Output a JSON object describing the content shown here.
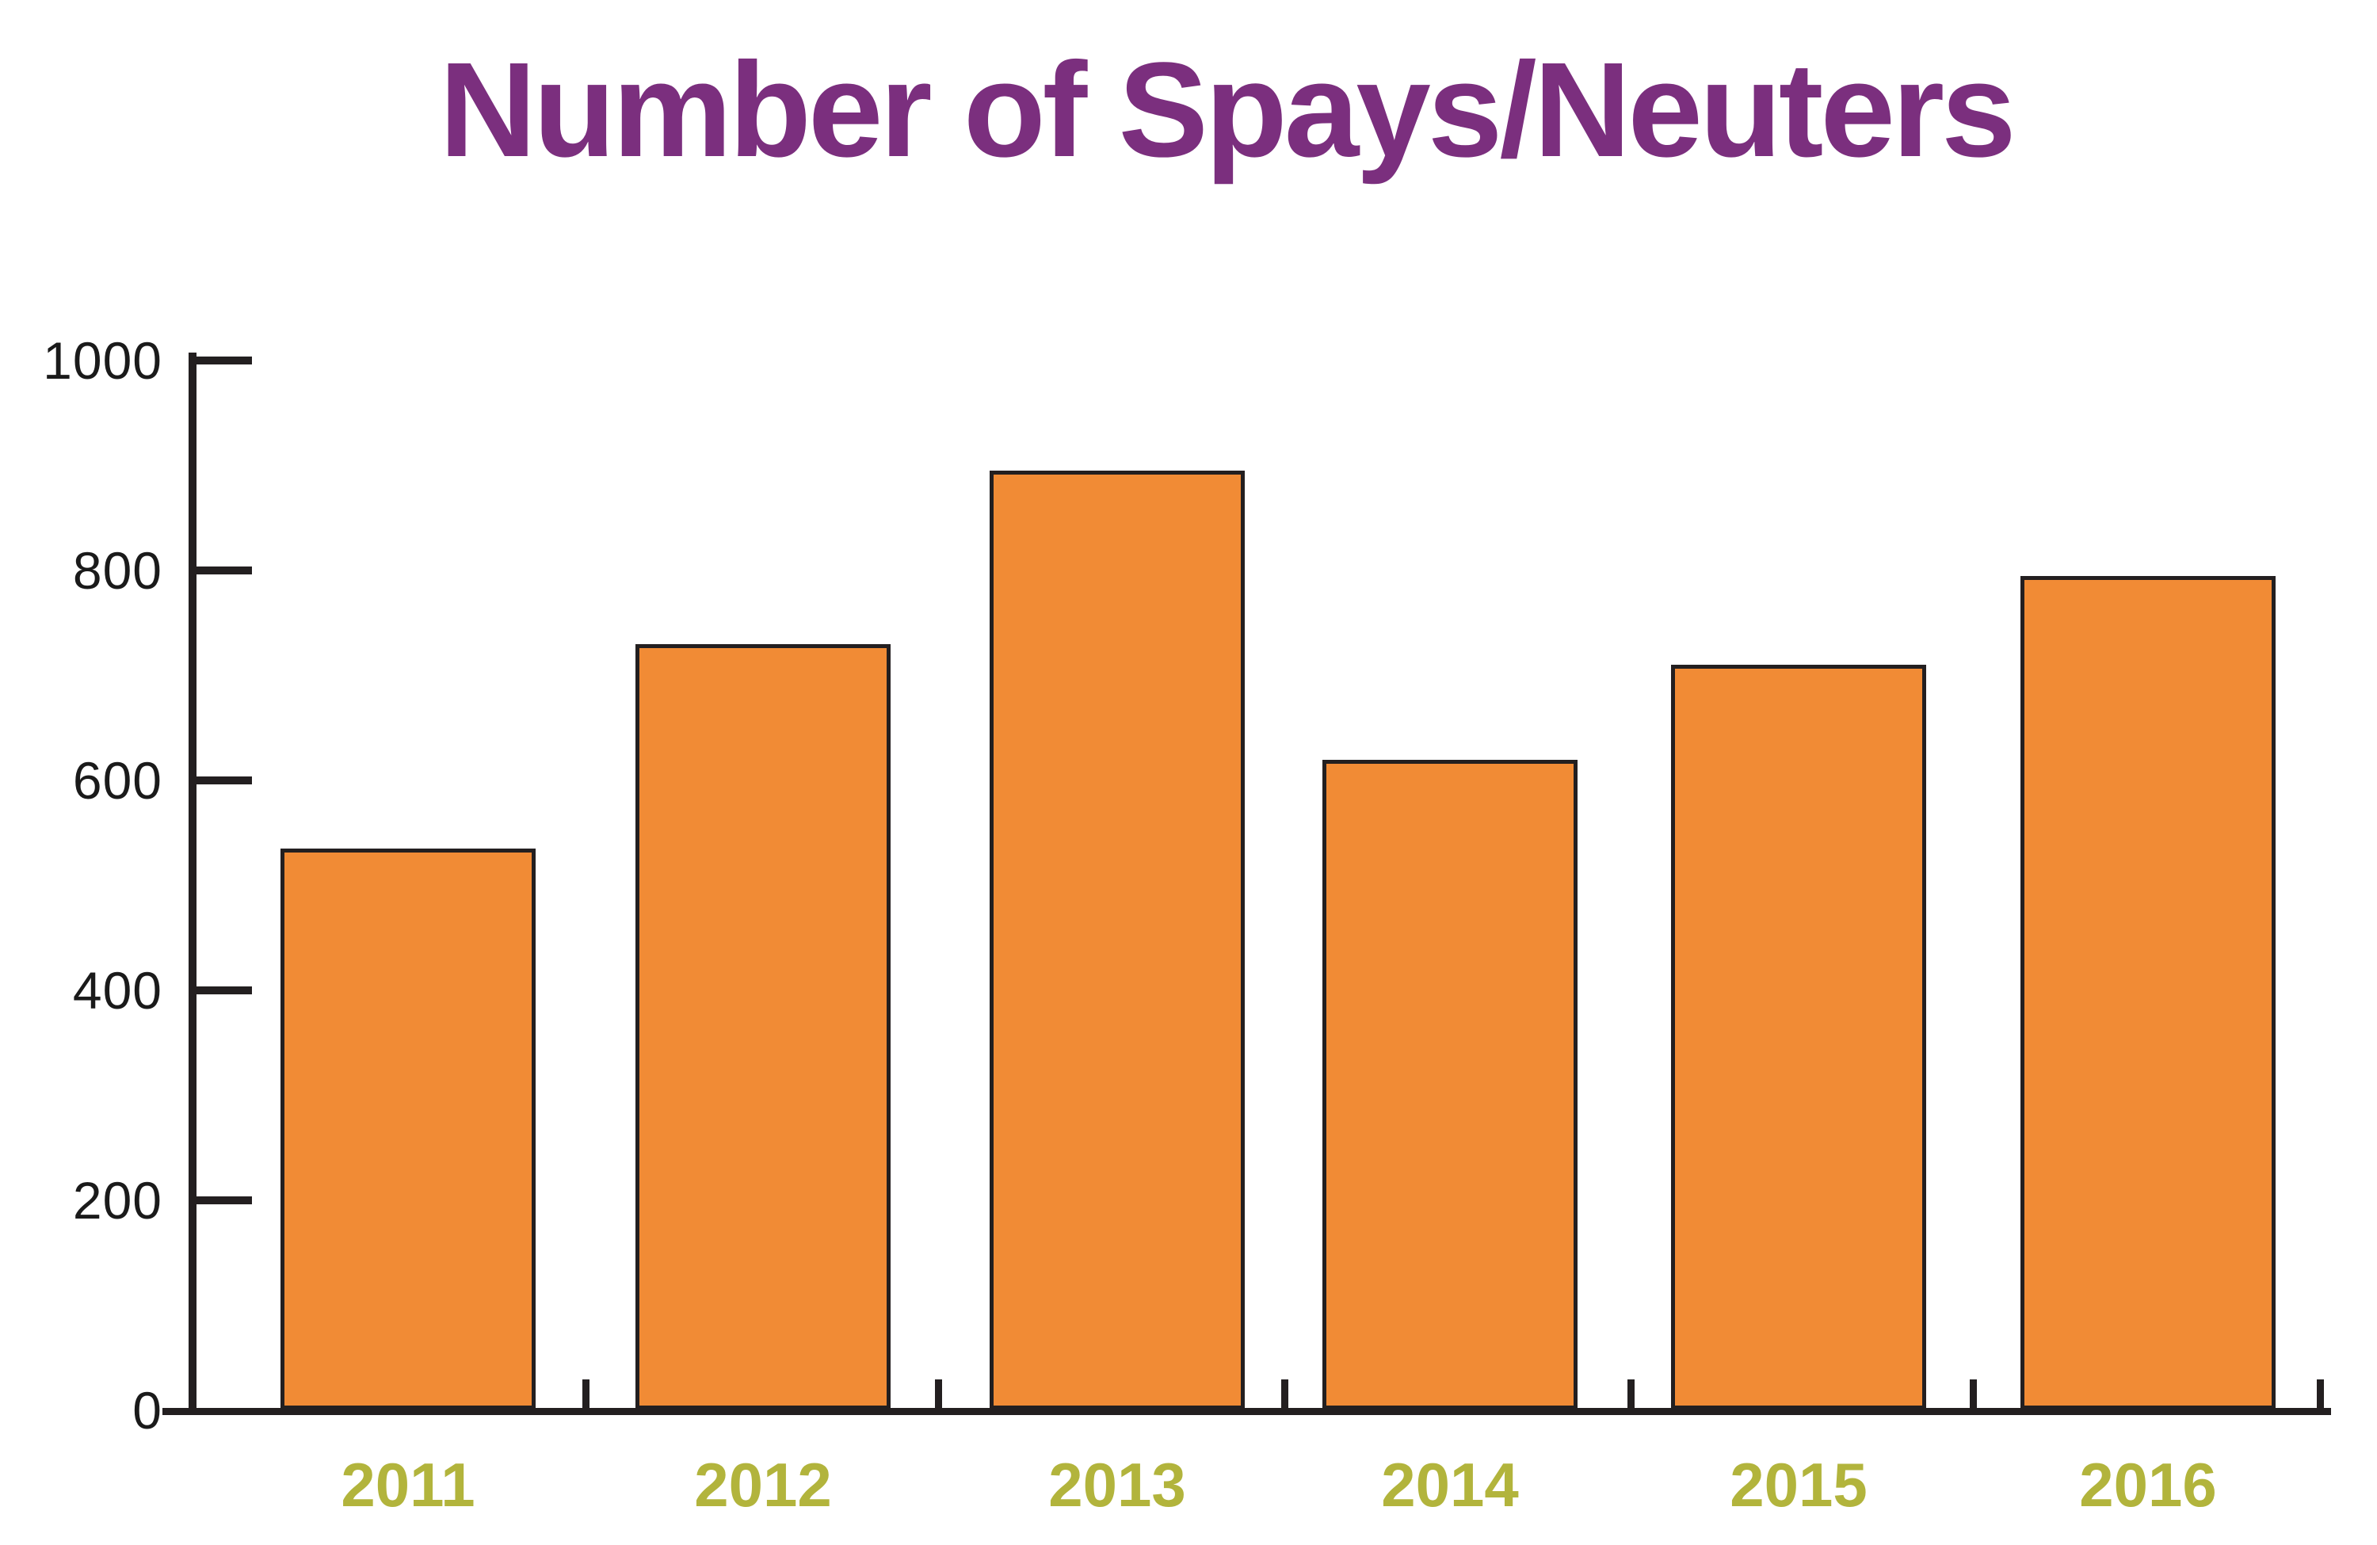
{
  "chart_data": {
    "type": "bar",
    "title": "Number of Spays/Neuters",
    "categories": [
      "2011",
      "2012",
      "2013",
      "2014",
      "2015",
      "2016"
    ],
    "values": [
      535,
      730,
      895,
      620,
      710,
      795
    ],
    "xlabel": "",
    "ylabel": "",
    "ylim": [
      0,
      1000
    ],
    "yticks": [
      1000,
      800,
      600,
      400,
      200,
      0
    ],
    "grid": false,
    "legend": false,
    "colors": {
      "bar_fill": "#F18B35",
      "bar_border": "#231F20",
      "axis": "#231F20",
      "y_tick_label": "#1A1A1A",
      "category_label": "#B2B43C",
      "title": "#7B2F7E",
      "background": "#FFFFFF"
    }
  }
}
